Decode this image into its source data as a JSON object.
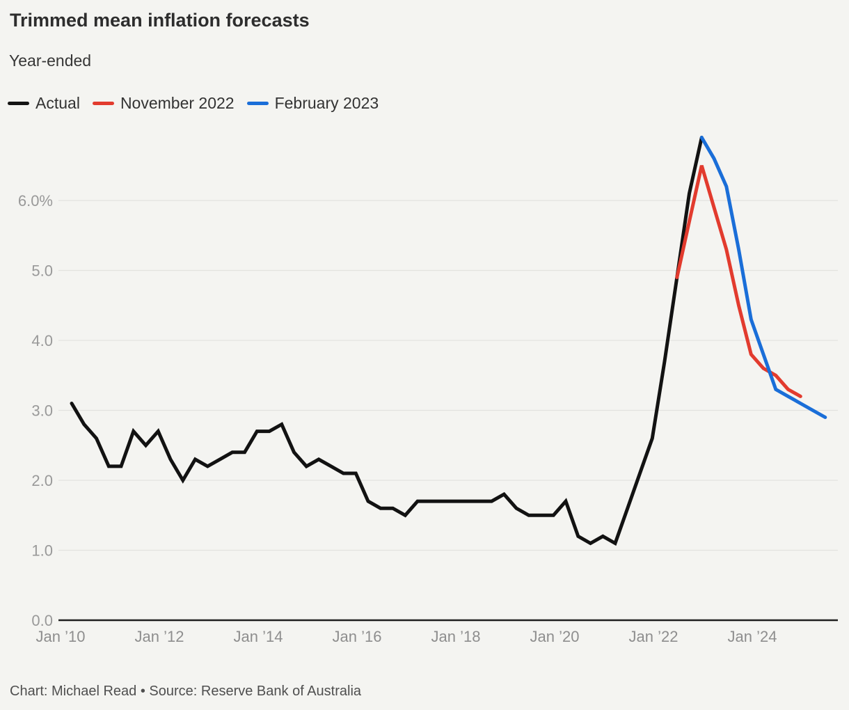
{
  "header": {
    "title": "Trimmed mean inflation forecasts",
    "subtitle": "Year-ended"
  },
  "legend": {
    "items": [
      {
        "label": "Actual",
        "color": "#141414"
      },
      {
        "label": "November 2022",
        "color": "#e23b2e"
      },
      {
        "label": "February 2023",
        "color": "#1a6ed8"
      }
    ]
  },
  "footer": {
    "credit": "Chart: Michael Read • Source: Reserve Bank of Australia"
  },
  "chart_data": {
    "type": "line",
    "title": "Trimmed mean inflation forecasts",
    "subtitle": "Year-ended",
    "unit": "percent, year-ended, quarterly",
    "grid": "horizontal",
    "legend_position": "top",
    "x_axis": {
      "tick_labels": [
        "Jan ’10",
        "Jan ’12",
        "Jan ’14",
        "Jan ’16",
        "Jan ’18",
        "Jan ’20",
        "Jan ’22",
        "Jan ’24"
      ],
      "range_quarters": [
        "2010 Q1",
        "2025 Q2"
      ]
    },
    "y_axis": {
      "ticks": [
        0,
        1,
        2,
        3,
        4,
        5,
        6
      ],
      "tick_labels": [
        "0.0",
        "1.0",
        "2.0",
        "3.0",
        "4.0",
        "5.0",
        "6.0%"
      ],
      "ylim": [
        0,
        7.2
      ]
    },
    "series": [
      {
        "name": "Actual",
        "color": "#121212",
        "start_quarter": "2010 Q1",
        "start_offset_quarters": 0,
        "quarterly_values": [
          3.1,
          2.8,
          2.6,
          2.2,
          2.2,
          2.7,
          2.5,
          2.7,
          2.3,
          2.0,
          2.3,
          2.2,
          2.3,
          2.4,
          2.4,
          2.7,
          2.7,
          2.8,
          2.4,
          2.2,
          2.3,
          2.2,
          2.1,
          2.1,
          1.7,
          1.6,
          1.6,
          1.5,
          1.7,
          1.7,
          1.7,
          1.7,
          1.7,
          1.7,
          1.7,
          1.8,
          1.6,
          1.5,
          1.5,
          1.5,
          1.7,
          1.2,
          1.1,
          1.2,
          1.1,
          1.6,
          2.1,
          2.6,
          3.7,
          4.9,
          6.1,
          6.9
        ]
      },
      {
        "name": "November 2022",
        "color": "#e23b2e",
        "start_quarter": "2022 Q2",
        "start_offset_quarters": 49,
        "quarterly_values": [
          4.9,
          5.7,
          6.5,
          5.9,
          5.3,
          4.5,
          3.8,
          3.6,
          3.5,
          3.3,
          3.2
        ]
      },
      {
        "name": "February 2023",
        "color": "#1a6ed8",
        "start_quarter": "2022 Q4",
        "start_offset_quarters": 51,
        "quarterly_values": [
          6.9,
          6.6,
          6.2,
          5.3,
          4.3,
          3.8,
          3.3,
          3.2,
          3.1,
          3.0,
          2.9
        ]
      }
    ]
  }
}
